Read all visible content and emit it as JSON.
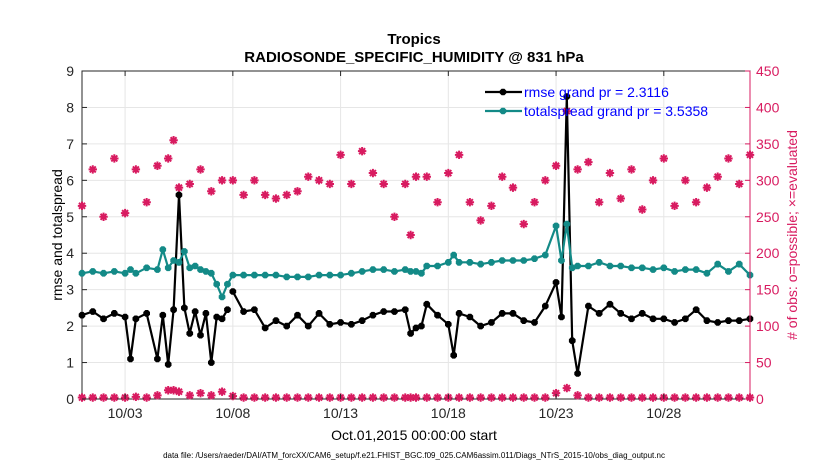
{
  "chart_data": {
    "type": "line",
    "title": "Tropics",
    "subtitle": "RADIOSONDE_SPECIFIC_HUMIDITY @ 831 hPa",
    "xlabel": "Oct.01,2015 00:00:00 start",
    "ylabel_left": "rmse and totalspread",
    "ylabel_right": "# of obs: o=possible; ×=evaluated",
    "footer": "data file: /Users/raeder/DAI/ATM_forcXX/CAM6_setup/f.e21.FHIST_BGC.f09_025.CAM6assim.011/Diags_NTrS_2015-10/obs_diag_output.nc",
    "x_ticks": [
      "10/03",
      "10/08",
      "10/13",
      "10/18",
      "10/23",
      "10/28"
    ],
    "x_tick_days": [
      3,
      8,
      13,
      18,
      23,
      28
    ],
    "xlim": [
      1,
      32
    ],
    "ylim_left": [
      0,
      9
    ],
    "ylim_right": [
      0,
      450
    ],
    "y_ticks_left": [
      "0",
      "1",
      "2",
      "3",
      "4",
      "5",
      "6",
      "7",
      "8",
      "9"
    ],
    "y_ticks_right": [
      "0",
      "50",
      "100",
      "150",
      "200",
      "250",
      "300",
      "350",
      "400",
      "450"
    ],
    "colors": {
      "rmse": "#000000",
      "spread": "#138a87",
      "obs": "#d81b60",
      "right_axis": "#d81b60",
      "legend_text": "#0000ff",
      "grid": "#e6e6e6"
    },
    "series": [
      {
        "name": "rmse grand pr = 2.3116",
        "color": "#000000",
        "x": [
          1,
          1.5,
          2,
          2.5,
          3,
          3.25,
          3.5,
          4,
          4.5,
          4.75,
          5,
          5.25,
          5.5,
          5.75,
          6,
          6.25,
          6.5,
          6.75,
          7,
          7.25,
          7.5,
          7.75,
          8,
          8.5,
          9,
          9.5,
          10,
          10.5,
          11,
          11.5,
          12,
          12.5,
          13,
          13.5,
          14,
          14.5,
          15,
          15.5,
          16,
          16.25,
          16.5,
          16.75,
          17,
          17.5,
          18,
          18.25,
          18.5,
          19,
          19.5,
          20,
          20.5,
          21,
          21.5,
          22,
          22.5,
          23,
          23.25,
          23.5,
          23.75,
          24,
          24.5,
          25,
          25.5,
          26,
          26.5,
          27,
          27.5,
          28,
          28.5,
          29,
          29.5,
          30,
          30.5,
          31,
          31.5,
          32
        ],
        "values": [
          2.3,
          2.4,
          2.2,
          2.35,
          2.25,
          1.1,
          2.2,
          2.35,
          1.1,
          2.3,
          0.95,
          2.45,
          5.6,
          2.5,
          1.8,
          2.4,
          1.75,
          2.35,
          1.0,
          2.25,
          2.2,
          2.45,
          2.95,
          2.4,
          2.45,
          1.95,
          2.15,
          2.0,
          2.3,
          2.0,
          2.35,
          2.05,
          2.1,
          2.05,
          2.15,
          2.3,
          2.4,
          2.4,
          2.45,
          1.8,
          1.95,
          2.0,
          2.6,
          2.3,
          2.05,
          1.2,
          2.35,
          2.25,
          2.0,
          2.1,
          2.35,
          2.35,
          2.15,
          2.1,
          2.55,
          3.2,
          2.25,
          8.3,
          1.6,
          0.7,
          2.55,
          2.35,
          2.6,
          2.35,
          2.2,
          2.35,
          2.2,
          2.2,
          2.1,
          2.2,
          2.45,
          2.15,
          2.1,
          2.15,
          2.15,
          2.2
        ],
        "breaks_after": [
          7.75
        ]
      },
      {
        "name": "totalspread grand pr = 3.5358",
        "color": "#138a87",
        "x": [
          1,
          1.5,
          2,
          2.5,
          3,
          3.25,
          3.5,
          4,
          4.5,
          4.75,
          5,
          5.25,
          5.5,
          5.75,
          6,
          6.25,
          6.5,
          6.75,
          7,
          7.25,
          7.5,
          7.75,
          8,
          8.5,
          9,
          9.5,
          10,
          10.5,
          11,
          11.5,
          12,
          12.5,
          13,
          13.5,
          14,
          14.5,
          15,
          15.5,
          16,
          16.25,
          16.5,
          16.75,
          17,
          17.5,
          18,
          18.25,
          18.5,
          19,
          19.5,
          20,
          20.5,
          21,
          21.5,
          22,
          22.5,
          23,
          23.25,
          23.5,
          23.75,
          24,
          24.5,
          25,
          25.5,
          26,
          26.5,
          27,
          27.5,
          28,
          28.5,
          29,
          29.5,
          30,
          30.5,
          31,
          31.5,
          32
        ],
        "values": [
          3.45,
          3.5,
          3.45,
          3.5,
          3.45,
          3.55,
          3.45,
          3.6,
          3.55,
          4.1,
          3.6,
          3.8,
          3.75,
          4.05,
          3.6,
          3.65,
          3.55,
          3.5,
          3.45,
          3.15,
          2.8,
          3.15,
          3.4,
          3.4,
          3.4,
          3.4,
          3.4,
          3.35,
          3.35,
          3.35,
          3.4,
          3.4,
          3.4,
          3.45,
          3.5,
          3.55,
          3.55,
          3.5,
          3.55,
          3.5,
          3.5,
          3.45,
          3.65,
          3.65,
          3.75,
          3.95,
          3.75,
          3.75,
          3.7,
          3.75,
          3.8,
          3.8,
          3.8,
          3.85,
          3.95,
          4.75,
          3.8,
          4.8,
          3.6,
          3.65,
          3.65,
          3.75,
          3.65,
          3.65,
          3.6,
          3.6,
          3.55,
          3.6,
          3.5,
          3.55,
          3.55,
          3.45,
          3.7,
          3.5,
          3.7,
          3.4
        ],
        "breaks_after": []
      },
      {
        "name": "# of obs possible",
        "axis": "right",
        "color": "#d81b60",
        "x": [
          1,
          1.5,
          2,
          2.5,
          3,
          3.5,
          4,
          4.5,
          5,
          5.25,
          5.5,
          6,
          6.5,
          7,
          7.5,
          8,
          8.5,
          9,
          9.5,
          10,
          10.5,
          11,
          11.5,
          12,
          12.5,
          13,
          13.5,
          14,
          14.5,
          15,
          15.5,
          16,
          16.25,
          16.5,
          17,
          17.5,
          18,
          18.5,
          19,
          19.5,
          20,
          20.5,
          21,
          21.5,
          22,
          22.5,
          23,
          23.5,
          24,
          24.5,
          25,
          25.5,
          26,
          26.5,
          27,
          27.5,
          28,
          28.5,
          29,
          29.5,
          30,
          30.5,
          31,
          31.5,
          32
        ],
        "values": [
          265,
          315,
          250,
          330,
          255,
          315,
          270,
          320,
          330,
          355,
          290,
          295,
          315,
          285,
          300,
          300,
          280,
          300,
          280,
          275,
          280,
          285,
          305,
          300,
          295,
          335,
          295,
          340,
          310,
          295,
          250,
          295,
          225,
          305,
          305,
          270,
          310,
          335,
          270,
          245,
          265,
          305,
          290,
          240,
          270,
          300,
          320,
          395,
          315,
          325,
          270,
          310,
          275,
          315,
          260,
          300,
          330,
          265,
          300,
          270,
          290,
          305,
          330,
          295,
          335
        ],
        "breaks_after": []
      },
      {
        "name": "# of obs evaluated",
        "axis": "right",
        "color": "#d81b60",
        "x": [
          1,
          1.5,
          2,
          2.5,
          3,
          3.5,
          4,
          4.5,
          5,
          5.25,
          5.5,
          6,
          6.5,
          7,
          7.5,
          8,
          8.5,
          9,
          9.5,
          10,
          10.5,
          11,
          11.5,
          12,
          12.5,
          13,
          13.5,
          14,
          14.5,
          15,
          15.5,
          16,
          16.25,
          16.5,
          17,
          17.5,
          18,
          18.5,
          19,
          19.5,
          20,
          20.5,
          21,
          21.5,
          22,
          22.5,
          23,
          23.5,
          24,
          24.5,
          25,
          25.5,
          26,
          26.5,
          27,
          27.5,
          28,
          28.5,
          29,
          29.5,
          30,
          30.5,
          31,
          31.5,
          32
        ],
        "values": [
          2,
          2,
          2,
          2,
          2,
          3,
          2,
          5,
          12,
          12,
          10,
          5,
          8,
          5,
          10,
          4,
          2,
          2,
          2,
          2,
          2,
          2,
          2,
          2,
          2,
          2,
          2,
          2,
          2,
          2,
          2,
          2,
          2,
          2,
          2,
          2,
          2,
          2,
          2,
          2,
          2,
          2,
          2,
          2,
          2,
          2,
          8,
          15,
          5,
          2,
          2,
          2,
          2,
          2,
          2,
          2,
          2,
          2,
          2,
          2,
          2,
          2,
          2,
          2,
          2
        ],
        "breaks_after": []
      }
    ],
    "legend": [
      "rmse grand pr = 2.3116",
      "totalspread grand pr = 3.5358"
    ],
    "legend_position": "top-right",
    "grid": true
  }
}
